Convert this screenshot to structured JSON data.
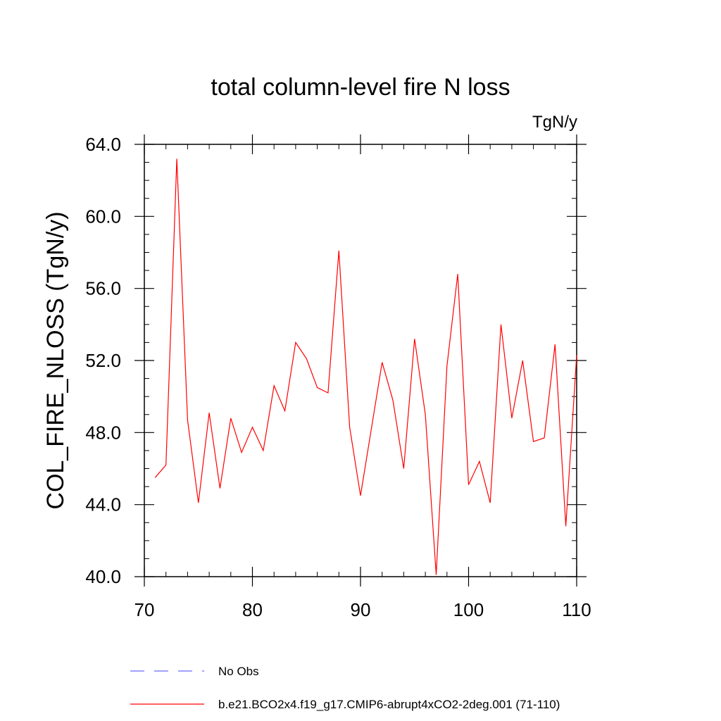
{
  "chart_data": {
    "type": "line",
    "title": "total column-level fire N loss",
    "units": "TgN/y",
    "xlabel": "",
    "ylabel": "COL_FIRE_NLOSS  (TgN/y)",
    "xlim": [
      70,
      110
    ],
    "ylim": [
      40,
      64
    ],
    "xticks": [
      70,
      80,
      90,
      100,
      110
    ],
    "xtick_labels": [
      "70",
      "80",
      "90",
      "100",
      "110"
    ],
    "yticks": [
      40,
      44,
      48,
      52,
      56,
      60,
      64
    ],
    "ytick_labels": [
      "40.0",
      "44.0",
      "48.0",
      "52.0",
      "56.0",
      "60.0",
      "64.0"
    ],
    "series": [
      {
        "name": "b.e21.BCO2x4.f19_g17.CMIP6-abrupt4xCO2-2deg.001 (71-110)",
        "color": "#ff0000",
        "x": [
          71,
          72,
          73,
          74,
          75,
          76,
          77,
          78,
          79,
          80,
          81,
          82,
          83,
          84,
          85,
          86,
          87,
          88,
          89,
          90,
          91,
          92,
          93,
          94,
          95,
          96,
          97,
          98,
          99,
          100,
          101,
          102,
          103,
          104,
          105,
          106,
          107,
          108,
          109,
          110
        ],
        "values": [
          45.5,
          46.2,
          63.2,
          48.7,
          44.1,
          49.1,
          44.9,
          48.8,
          46.9,
          48.3,
          47.0,
          50.6,
          49.2,
          53.0,
          52.1,
          50.5,
          50.2,
          58.1,
          48.3,
          44.5,
          48.2,
          51.9,
          49.8,
          46.0,
          53.2,
          49.0,
          40.1,
          51.7,
          56.8,
          45.1,
          46.4,
          44.1,
          54.0,
          48.8,
          52.0,
          47.5,
          47.7,
          52.9,
          42.8,
          52.3
        ]
      }
    ],
    "legend": {
      "position": "bottom",
      "entries": [
        {
          "label": "No Obs",
          "color": "#6a6aff",
          "style": "dashed"
        },
        {
          "label": "b.e21.BCO2x4.f19_g17.CMIP6-abrupt4xCO2-2deg.001 (71-110)",
          "color": "#ff0000",
          "style": "solid"
        }
      ]
    }
  }
}
